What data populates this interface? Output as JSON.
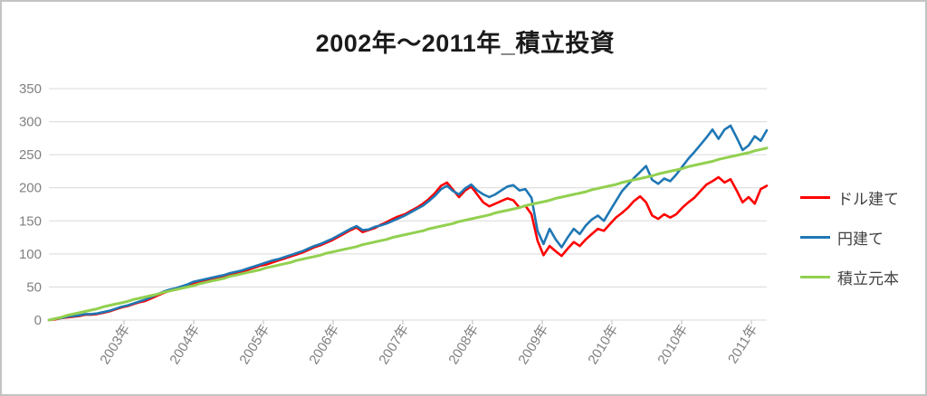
{
  "title": "2002年〜2011年_積立投資",
  "legend": {
    "items": [
      {
        "label": "ドル建て",
        "color": "#FF0000"
      },
      {
        "label": "円建て",
        "color": "#1F77B4"
      },
      {
        "label": "積立元本",
        "color": "#92D050"
      }
    ]
  },
  "colors": {
    "background": "#ffffff",
    "border": "#c3c3c3",
    "gridline": "#D9D9D9",
    "tick_mark": "#BFBFBF",
    "axis_label": "#808080",
    "title_text": "#1a1a1a",
    "legend_text": "#404040"
  },
  "chart_data": {
    "type": "line",
    "title": "2002年〜2011年_積立投資",
    "xlabel": "",
    "ylabel": "",
    "ylim": [
      0,
      350
    ],
    "y_ticks": [
      0,
      50,
      100,
      150,
      200,
      250,
      300,
      350
    ],
    "x_tick_labels": [
      "2003年",
      "2004年",
      "2005年",
      "2006年",
      "2007年",
      "2008年",
      "2009年",
      "2010年",
      "2010年",
      "2011年"
    ],
    "grid": true,
    "legend_position": "right",
    "x_description": "monthly samples from 2002 through 2011, 120 points per series",
    "series": [
      {
        "name": "ドル建て",
        "color": "#FF0000",
        "values": [
          0,
          1,
          3,
          4,
          5,
          6,
          8,
          8,
          9,
          11,
          13,
          16,
          19,
          21,
          24,
          27,
          29,
          33,
          37,
          41,
          44,
          46,
          49,
          52,
          56,
          58,
          60,
          62,
          64,
          66,
          68,
          70,
          73,
          76,
          79,
          82,
          84,
          87,
          90,
          93,
          96,
          99,
          102,
          106,
          110,
          113,
          117,
          121,
          126,
          131,
          136,
          140,
          133,
          136,
          139,
          144,
          148,
          153,
          157,
          160,
          165,
          170,
          176,
          183,
          192,
          203,
          208,
          197,
          186,
          196,
          202,
          190,
          178,
          172,
          176,
          180,
          184,
          181,
          170,
          173,
          160,
          120,
          98,
          112,
          104,
          97,
          108,
          118,
          112,
          122,
          130,
          138,
          135,
          145,
          155,
          162,
          170,
          180,
          187,
          178,
          158,
          153,
          160,
          155,
          160,
          170,
          178,
          185,
          195,
          205,
          210,
          216,
          208,
          213,
          196,
          178,
          186,
          176,
          198,
          203
        ]
      },
      {
        "name": "円建て",
        "color": "#1F77B4",
        "values": [
          0,
          2,
          3,
          5,
          6,
          7,
          9,
          9,
          10,
          12,
          14,
          17,
          20,
          22,
          25,
          28,
          31,
          35,
          39,
          43,
          46,
          48,
          51,
          54,
          58,
          60,
          62,
          64,
          66,
          68,
          71,
          73,
          75,
          78,
          81,
          84,
          87,
          90,
          92,
          95,
          98,
          101,
          104,
          108,
          112,
          115,
          119,
          123,
          128,
          133,
          138,
          142,
          136,
          137,
          141,
          143,
          146,
          150,
          154,
          158,
          163,
          168,
          173,
          180,
          188,
          198,
          203,
          195,
          190,
          199,
          205,
          196,
          190,
          186,
          190,
          196,
          202,
          204,
          196,
          198,
          185,
          135,
          115,
          138,
          122,
          110,
          125,
          138,
          130,
          143,
          152,
          158,
          150,
          165,
          180,
          195,
          205,
          215,
          224,
          233,
          212,
          206,
          214,
          210,
          220,
          232,
          244,
          254,
          265,
          276,
          288,
          274,
          288,
          294,
          276,
          257,
          264,
          278,
          271,
          287
        ]
      },
      {
        "name": "積立元本",
        "color": "#92D050",
        "values": [
          0,
          2,
          4,
          7,
          9,
          11,
          13,
          15,
          17,
          20,
          22,
          24,
          26,
          28,
          31,
          33,
          35,
          37,
          39,
          42,
          44,
          46,
          48,
          50,
          52,
          55,
          57,
          59,
          61,
          63,
          66,
          68,
          70,
          72,
          74,
          76,
          79,
          81,
          83,
          85,
          87,
          90,
          92,
          94,
          96,
          98,
          101,
          103,
          105,
          107,
          109,
          111,
          114,
          116,
          118,
          120,
          122,
          125,
          127,
          129,
          131,
          133,
          135,
          138,
          140,
          142,
          144,
          146,
          149,
          151,
          153,
          155,
          157,
          159,
          162,
          164,
          166,
          168,
          170,
          173,
          175,
          177,
          179,
          181,
          184,
          186,
          188,
          190,
          192,
          194,
          197,
          199,
          201,
          203,
          205,
          208,
          210,
          212,
          214,
          216,
          218,
          221,
          223,
          225,
          227,
          229,
          232,
          234,
          236,
          238,
          240,
          243,
          245,
          247,
          249,
          251,
          253,
          256,
          258,
          260
        ]
      }
    ]
  }
}
